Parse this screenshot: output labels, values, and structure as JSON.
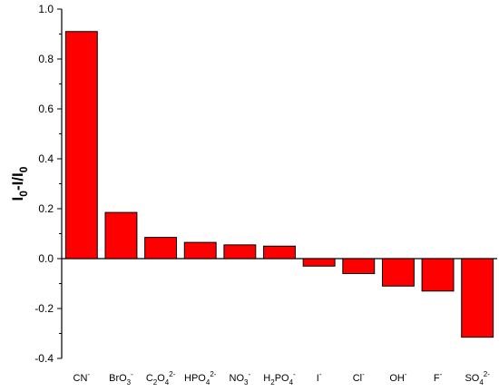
{
  "chart_data": {
    "type": "bar",
    "ylabel": "I0-I/I0",
    "ylabel_parts": [
      {
        "text": "I",
        "sub": false
      },
      {
        "text": "0",
        "sub": true
      },
      {
        "text": "-I/I",
        "sub": false
      },
      {
        "text": "0",
        "sub": true
      }
    ],
    "categories": [
      {
        "id": "CN-",
        "parts": [
          {
            "t": "CN",
            "k": "n"
          },
          {
            "t": "-",
            "k": "sup"
          }
        ]
      },
      {
        "id": "BrO3-",
        "parts": [
          {
            "t": "BrO",
            "k": "n"
          },
          {
            "t": "3",
            "k": "sub"
          },
          {
            "t": "-",
            "k": "sup"
          }
        ]
      },
      {
        "id": "C2O4 2-",
        "parts": [
          {
            "t": "C",
            "k": "n"
          },
          {
            "t": "2",
            "k": "sub"
          },
          {
            "t": "O",
            "k": "n"
          },
          {
            "t": "4",
            "k": "sub"
          },
          {
            "t": "2-",
            "k": "sup"
          }
        ]
      },
      {
        "id": "HPO4 2-",
        "parts": [
          {
            "t": "HPO",
            "k": "n"
          },
          {
            "t": "4",
            "k": "sub"
          },
          {
            "t": "2-",
            "k": "sup"
          }
        ]
      },
      {
        "id": "NO3-",
        "parts": [
          {
            "t": "NO",
            "k": "n"
          },
          {
            "t": "3",
            "k": "sub"
          },
          {
            "t": "-",
            "k": "sup"
          }
        ]
      },
      {
        "id": "H2PO4-",
        "parts": [
          {
            "t": "H",
            "k": "n"
          },
          {
            "t": "2",
            "k": "sub"
          },
          {
            "t": "PO",
            "k": "n"
          },
          {
            "t": "4",
            "k": "sub"
          },
          {
            "t": "-",
            "k": "sup"
          }
        ]
      },
      {
        "id": "I-",
        "parts": [
          {
            "t": "I",
            "k": "n"
          },
          {
            "t": "-",
            "k": "sup"
          }
        ]
      },
      {
        "id": "Cl-",
        "parts": [
          {
            "t": "Cl",
            "k": "n"
          },
          {
            "t": "-",
            "k": "sup"
          }
        ]
      },
      {
        "id": "OH-",
        "parts": [
          {
            "t": "OH",
            "k": "n"
          },
          {
            "t": "-",
            "k": "sup"
          }
        ]
      },
      {
        "id": "F-",
        "parts": [
          {
            "t": "F",
            "k": "n"
          },
          {
            "t": "-",
            "k": "sup"
          }
        ]
      },
      {
        "id": "SO4 2-",
        "parts": [
          {
            "t": "SO",
            "k": "n"
          },
          {
            "t": "4",
            "k": "sub"
          },
          {
            "t": "2-",
            "k": "sup"
          }
        ]
      }
    ],
    "values": [
      0.91,
      0.185,
      0.085,
      0.065,
      0.055,
      0.05,
      -0.03,
      -0.06,
      -0.11,
      -0.13,
      -0.315
    ],
    "ylim": [
      -0.4,
      1.0
    ],
    "yticks": [
      "-0.4",
      "-0.2",
      "0.0",
      "0.2",
      "0.4",
      "0.6",
      "0.8",
      "1.0"
    ],
    "bar_color": "#ff0000",
    "grid": false,
    "legend": "none"
  }
}
